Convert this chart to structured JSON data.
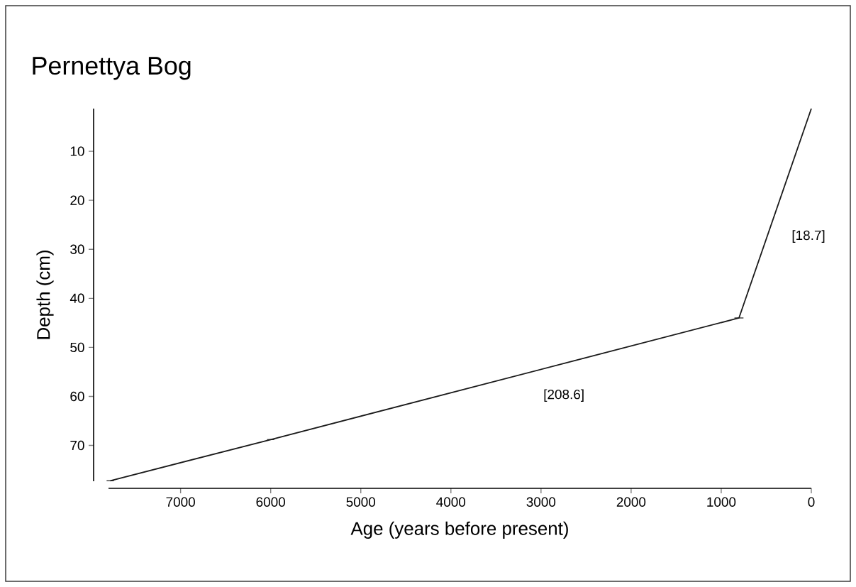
{
  "chart_data": {
    "type": "line",
    "title": "Pernettya Bog",
    "xlabel": "Age (years before present)",
    "ylabel": "Depth (cm)",
    "x": [
      0,
      803,
      6000,
      7781
    ],
    "values": [
      1.3,
      44,
      68.8,
      77.2
    ],
    "xerrors": [
      null,
      50,
      40,
      40
    ],
    "color": "#1a1a1a",
    "marker": "none",
    "line_style": "solid",
    "grid": false,
    "xlim": [
      7800,
      0
    ],
    "ylim": [
      77.3,
      1.3
    ],
    "xticks": [
      7000,
      6000,
      5000,
      4000,
      3000,
      2000,
      1000,
      0
    ],
    "yticks": [
      10,
      20,
      30,
      40,
      50,
      60,
      70
    ],
    "annotations": [
      "[18.7]",
      "[208.6]"
    ]
  }
}
